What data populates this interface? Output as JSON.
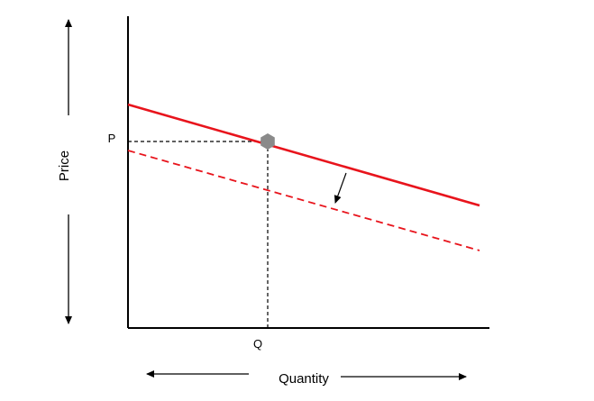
{
  "diagram": {
    "y_axis_label": "Price",
    "x_axis_label": "Quantity",
    "price_marker": "P",
    "quantity_marker": "Q",
    "colors": {
      "axis": "#000000",
      "demand_curve": "#e8141c",
      "shifted_curve": "#e8141c",
      "equilibrium_point": "#8a8a8a",
      "guides": "#000000"
    },
    "lines": {
      "original_curve": {
        "style": "solid"
      },
      "shifted_curve": {
        "style": "dashed"
      },
      "shift_direction": "down"
    },
    "equilibrium_point": {
      "shape": "hexagon"
    }
  }
}
